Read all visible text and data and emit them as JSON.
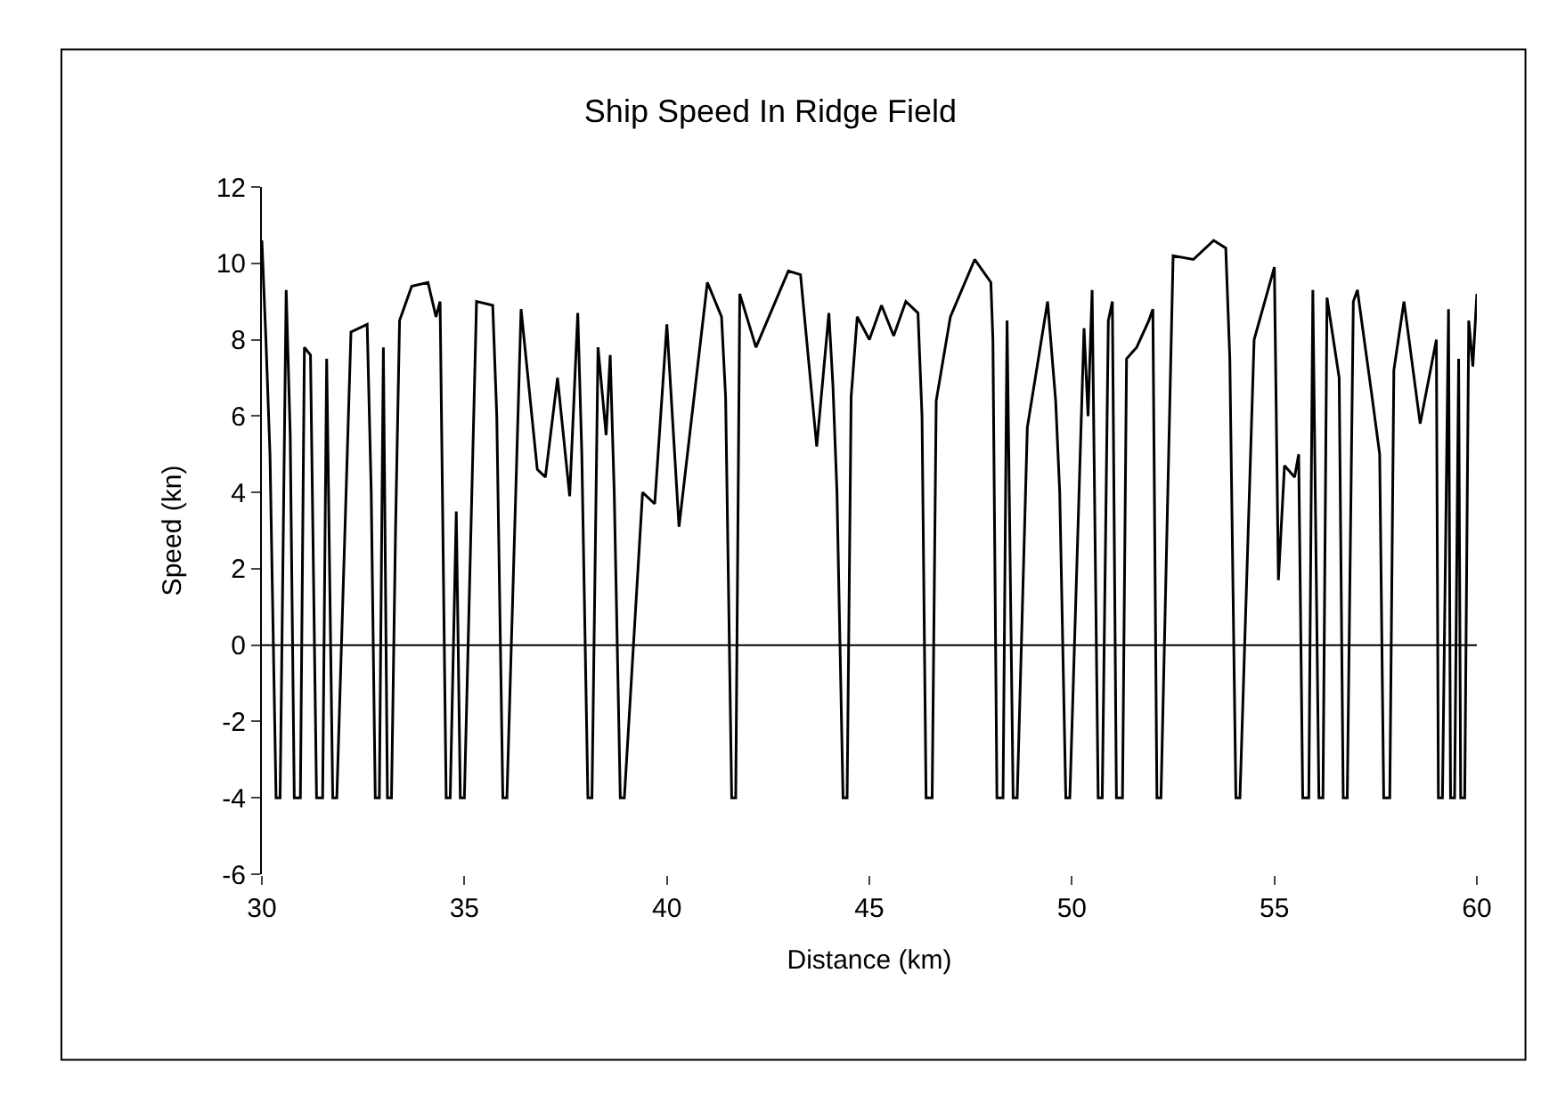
{
  "chart_data": {
    "type": "line",
    "title": "Ship Speed In Ridge Field",
    "xlabel": "Distance (km)",
    "ylabel": "Speed (kn)",
    "xlim": [
      30,
      60
    ],
    "xticks": [
      30,
      35,
      40,
      45,
      50,
      55,
      60
    ],
    "ylim": [
      -6,
      12
    ],
    "yticks": [
      -6,
      -4,
      -2,
      0,
      2,
      4,
      6,
      8,
      10,
      12
    ],
    "ref_lines": [
      {
        "axis": "y",
        "value": 0,
        "color": "#000000",
        "line_style": "solid"
      }
    ],
    "marker": "none",
    "line_style": "solid",
    "series": [
      {
        "color": "#000000",
        "x": [
          30.0,
          30.1,
          30.2,
          30.35,
          30.45,
          30.6,
          30.7,
          30.8,
          30.95,
          31.05,
          31.2,
          31.35,
          31.5,
          31.6,
          31.75,
          31.85,
          32.2,
          32.6,
          32.7,
          32.8,
          32.9,
          33.0,
          33.1,
          33.2,
          33.3,
          33.4,
          33.7,
          34.1,
          34.3,
          34.4,
          34.55,
          34.65,
          34.8,
          34.9,
          35.0,
          35.3,
          35.7,
          35.8,
          35.95,
          36.05,
          36.4,
          36.8,
          37.0,
          37.3,
          37.6,
          37.8,
          37.9,
          38.05,
          38.15,
          38.3,
          38.5,
          38.6,
          38.7,
          38.85,
          38.95,
          39.4,
          39.7,
          40.0,
          40.3,
          41.0,
          41.35,
          41.45,
          41.6,
          41.7,
          41.8,
          42.2,
          43.0,
          43.3,
          43.7,
          44.0,
          44.1,
          44.2,
          44.35,
          44.45,
          44.55,
          44.7,
          45.0,
          45.3,
          45.6,
          45.9,
          46.2,
          46.3,
          46.4,
          46.55,
          46.65,
          47.0,
          47.6,
          48.0,
          48.05,
          48.15,
          48.3,
          48.4,
          48.55,
          48.65,
          48.9,
          49.4,
          49.6,
          49.7,
          49.85,
          49.95,
          50.3,
          50.4,
          50.5,
          50.65,
          50.75,
          50.9,
          51.0,
          51.1,
          51.25,
          51.35,
          51.6,
          51.9,
          52.0,
          52.1,
          52.2,
          52.5,
          53.0,
          53.5,
          53.8,
          53.9,
          54.05,
          54.15,
          54.5,
          55.0,
          55.1,
          55.25,
          55.5,
          55.6,
          55.7,
          55.85,
          55.95,
          56.1,
          56.2,
          56.3,
          56.6,
          56.7,
          56.8,
          56.95,
          57.05,
          57.4,
          57.6,
          57.7,
          57.85,
          57.95,
          58.2,
          58.6,
          59.0,
          59.05,
          59.15,
          59.3,
          59.35,
          59.45,
          59.55,
          59.6,
          59.7,
          59.8,
          59.9,
          60.0
        ],
        "values": [
          10.6,
          8.0,
          5.0,
          -4,
          -4,
          9.3,
          5.5,
          -4,
          -4,
          7.8,
          7.6,
          -4,
          -4,
          7.5,
          -4,
          -4,
          8.2,
          8.4,
          4.0,
          -4,
          -4,
          7.8,
          -4,
          -4,
          3.0,
          8.5,
          9.4,
          9.5,
          8.6,
          9.0,
          -4,
          -4,
          3.5,
          -4,
          -4,
          9.0,
          8.9,
          6.0,
          -4,
          -4,
          8.8,
          4.6,
          4.4,
          7.0,
          3.9,
          8.7,
          5.0,
          -4,
          -4,
          7.8,
          5.5,
          7.6,
          4.0,
          -4,
          -4,
          4.0,
          3.7,
          8.4,
          3.1,
          9.5,
          8.6,
          6.5,
          -4,
          -4,
          9.2,
          7.8,
          9.8,
          9.7,
          5.2,
          8.7,
          6.8,
          4.0,
          -4,
          -4,
          6.5,
          8.6,
          8.0,
          8.9,
          8.1,
          9.0,
          8.7,
          6.0,
          -4,
          -4,
          6.4,
          8.6,
          10.1,
          9.5,
          8.0,
          -4,
          -4,
          8.5,
          -4,
          -4,
          5.7,
          9.0,
          6.4,
          4.0,
          -4,
          -4,
          8.3,
          6.0,
          9.3,
          -4,
          -4,
          8.5,
          9.0,
          -4,
          -4,
          7.5,
          7.8,
          8.5,
          8.8,
          -4,
          -4,
          10.2,
          10.1,
          10.6,
          10.4,
          7.5,
          -4,
          -4,
          8.0,
          9.9,
          1.7,
          4.7,
          4.4,
          5.0,
          -4,
          -4,
          9.3,
          -4,
          -4,
          9.1,
          7.0,
          -4,
          -4,
          9.0,
          9.3,
          6.6,
          5.0,
          -4,
          -4,
          7.2,
          9.0,
          5.8,
          8.0,
          -4,
          -4,
          8.8,
          -4,
          -4,
          7.5,
          -4,
          -4,
          8.5,
          7.3,
          9.2
        ]
      }
    ]
  }
}
